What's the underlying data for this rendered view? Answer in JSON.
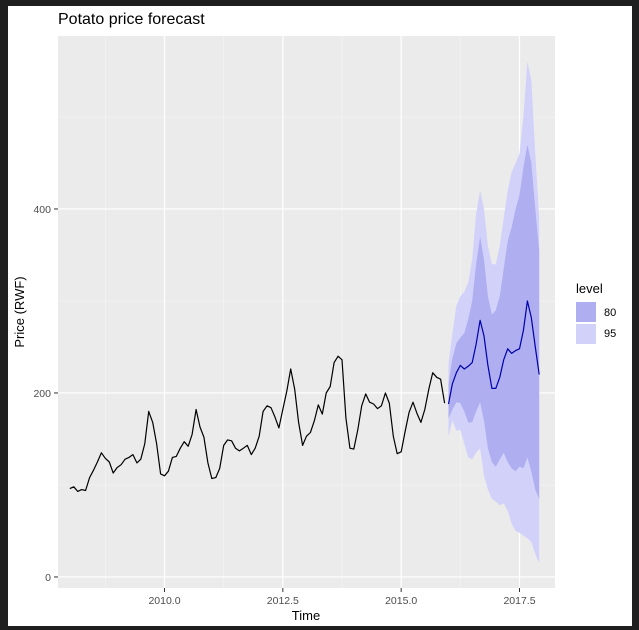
{
  "chart_data": {
    "type": "line",
    "title": "Potato price forecast",
    "xlabel": "Time",
    "ylabel": "Price (RWF)",
    "xlim": [
      2007.75,
      2018.25
    ],
    "ylim": [
      -12,
      588
    ],
    "x_ticks": [
      2010.0,
      2012.5,
      2015.0,
      2017.5
    ],
    "x_tick_labels": [
      "2010.0",
      "2012.5",
      "2015.0",
      "2017.5"
    ],
    "y_ticks": [
      0,
      200,
      400
    ],
    "y_tick_labels": [
      "0",
      "200",
      "400"
    ],
    "grid": true,
    "legend": {
      "title": "level",
      "position": "right",
      "entries": [
        {
          "label": "80",
          "color": "#aeaef0"
        },
        {
          "label": "95",
          "color": "#d1d1fa"
        }
      ]
    },
    "series": [
      {
        "role": "history",
        "color": "#000000",
        "start": 2008.0,
        "step": 0.0833333,
        "values": [
          96,
          98,
          93,
          95,
          94,
          108,
          116,
          125,
          135,
          129,
          125,
          113,
          119,
          122,
          128,
          130,
          133,
          124,
          128,
          145,
          180,
          168,
          145,
          112,
          110,
          115,
          130,
          131,
          140,
          147,
          142,
          155,
          182,
          163,
          152,
          124,
          107,
          108,
          118,
          143,
          149,
          148,
          140,
          137,
          140,
          143,
          133,
          140,
          153,
          180,
          186,
          184,
          174,
          162,
          182,
          202,
          226,
          204,
          168,
          143,
          153,
          157,
          170,
          187,
          177,
          200,
          207,
          233,
          240,
          236,
          173,
          140,
          139,
          160,
          186,
          199,
          190,
          188,
          183,
          186,
          200,
          189,
          153,
          134,
          136,
          158,
          179,
          190,
          178,
          168,
          182,
          204,
          222,
          217,
          215,
          189
        ]
      },
      {
        "role": "forecast-mean",
        "color": "#0000aa",
        "start": 2016.0,
        "step": 0.0833333,
        "values": [
          188,
          210,
          222,
          230,
          226,
          229,
          233,
          253,
          279,
          262,
          230,
          205,
          205,
          217,
          236,
          248,
          243,
          246,
          248,
          268,
          300,
          282,
          250,
          220
        ]
      }
    ],
    "intervals": [
      {
        "level": "95",
        "color": "#d1d1fa",
        "lower": [
          153,
          170,
          159,
          160,
          145,
          130,
          128,
          135,
          140,
          110,
          95,
          85,
          82,
          78,
          80,
          72,
          58,
          50,
          48,
          45,
          42,
          38,
          25,
          15
        ],
        "upper": [
          232,
          265,
          295,
          305,
          310,
          320,
          345,
          395,
          420,
          400,
          360,
          340,
          340,
          360,
          390,
          420,
          440,
          450,
          460,
          500,
          560,
          540,
          460,
          390
        ]
      },
      {
        "level": "80",
        "color": "#aeaef0",
        "lower": [
          172,
          182,
          190,
          189,
          180,
          168,
          168,
          180,
          190,
          170,
          140,
          125,
          120,
          128,
          135,
          125,
          118,
          115,
          120,
          118,
          130,
          115,
          95,
          85
        ],
        "upper": [
          210,
          238,
          254,
          260,
          265,
          280,
          300,
          340,
          370,
          345,
          305,
          285,
          290,
          305,
          335,
          365,
          380,
          400,
          415,
          445,
          470,
          450,
          400,
          355
        ]
      }
    ]
  }
}
